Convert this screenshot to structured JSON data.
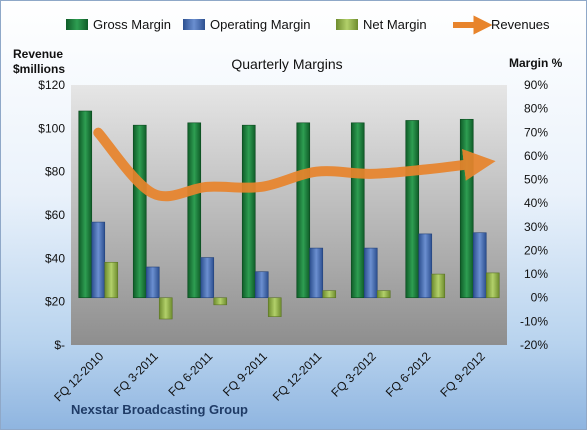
{
  "chart_data": {
    "type": "bar",
    "title": "Quarterly Margins",
    "left_axis_label_line1": "Revenue",
    "left_axis_label_line2": "$millions",
    "right_axis_label": "Margin %",
    "footer": "Nexstar Broadcasting Group",
    "categories": [
      "FQ 12-2010",
      "FQ 3-2011",
      "FQ 6-2011",
      "FQ 9-2011",
      "FQ 12-2011",
      "FQ 3-2012",
      "FQ 6-2012",
      "FQ 9-2012"
    ],
    "series": [
      {
        "name": "Gross Margin",
        "axis": "right",
        "color": "#1e7a3c",
        "values": [
          79,
          73,
          74,
          73,
          74,
          74,
          75,
          75.5
        ]
      },
      {
        "name": "Operating Margin",
        "axis": "right",
        "color": "#4a6fb0",
        "values": [
          32,
          13,
          17,
          11,
          21,
          21,
          27,
          27.5
        ]
      },
      {
        "name": "Net Margin",
        "axis": "right",
        "color": "#8fb04a",
        "values": [
          15,
          -9,
          -3,
          -8,
          3,
          3,
          10,
          10.5
        ]
      },
      {
        "name": "Revenues",
        "axis": "left",
        "color": "#e8842c",
        "type": "line",
        "values": [
          98,
          70,
          73,
          73,
          80,
          79,
          81,
          84
        ]
      }
    ],
    "left_axis": {
      "min": 0,
      "max": 120,
      "step": 20,
      "ticks": [
        "$-",
        "$20",
        "$40",
        "$60",
        "$80",
        "$100",
        "$120"
      ]
    },
    "right_axis": {
      "min": -20,
      "max": 90,
      "step": 10,
      "ticks": [
        "-20%",
        "-10%",
        "0%",
        "10%",
        "20%",
        "30%",
        "40%",
        "50%",
        "60%",
        "70%",
        "80%",
        "90%"
      ]
    },
    "legend_position": "top",
    "grid": false
  }
}
